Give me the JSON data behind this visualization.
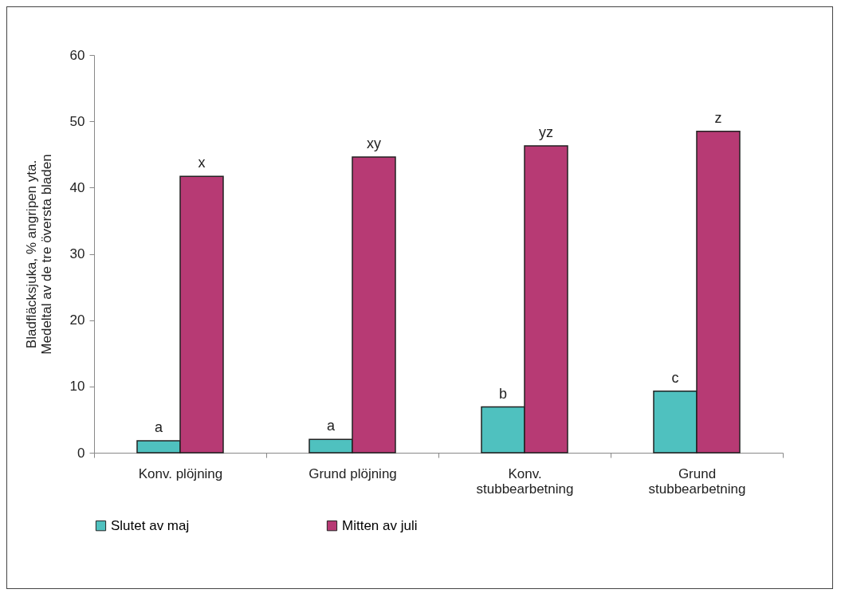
{
  "chart_data": {
    "type": "bar",
    "ylabel": "Bladfläcksjuka, % angripen yta. Medeltal av de tre översta bladen",
    "categories": [
      "Konv. plöjning",
      "Grund plöjning",
      "Konv. stubbearbetning",
      "Grund stubbearbetning"
    ],
    "series": [
      {
        "name": "Slutet av maj",
        "color": "#4fc1bf",
        "values": [
          1.8,
          2.0,
          6.9,
          9.3
        ]
      },
      {
        "name": "Mitten av juli",
        "color": "#b73a74",
        "values": [
          41.7,
          44.6,
          46.3,
          48.5
        ]
      }
    ],
    "ylim": [
      0,
      60
    ],
    "yticks": [
      0,
      10,
      20,
      30,
      40,
      50,
      60
    ],
    "grid": false,
    "legend": "bottom",
    "annotations": [
      {
        "text": "a",
        "x": "Konv. plöjning",
        "y": 1.8
      },
      {
        "text": "x",
        "x": "Konv. plöjning",
        "y": 41.7
      },
      {
        "text": "a",
        "x": "Grund plöjning",
        "y": 2.0
      },
      {
        "text": "xy",
        "x": "Grund plöjning",
        "y": 44.6
      },
      {
        "text": "b",
        "x": "Konv. stubbearbetning",
        "y": 6.9
      },
      {
        "text": "yz",
        "x": "Konv. stubbearbetning",
        "y": 46.3
      },
      {
        "text": "c",
        "x": "Grund stubbearbetning",
        "y": 9.3
      },
      {
        "text": "z",
        "x": "Grund stubbearbetning",
        "y": 48.5
      }
    ]
  }
}
